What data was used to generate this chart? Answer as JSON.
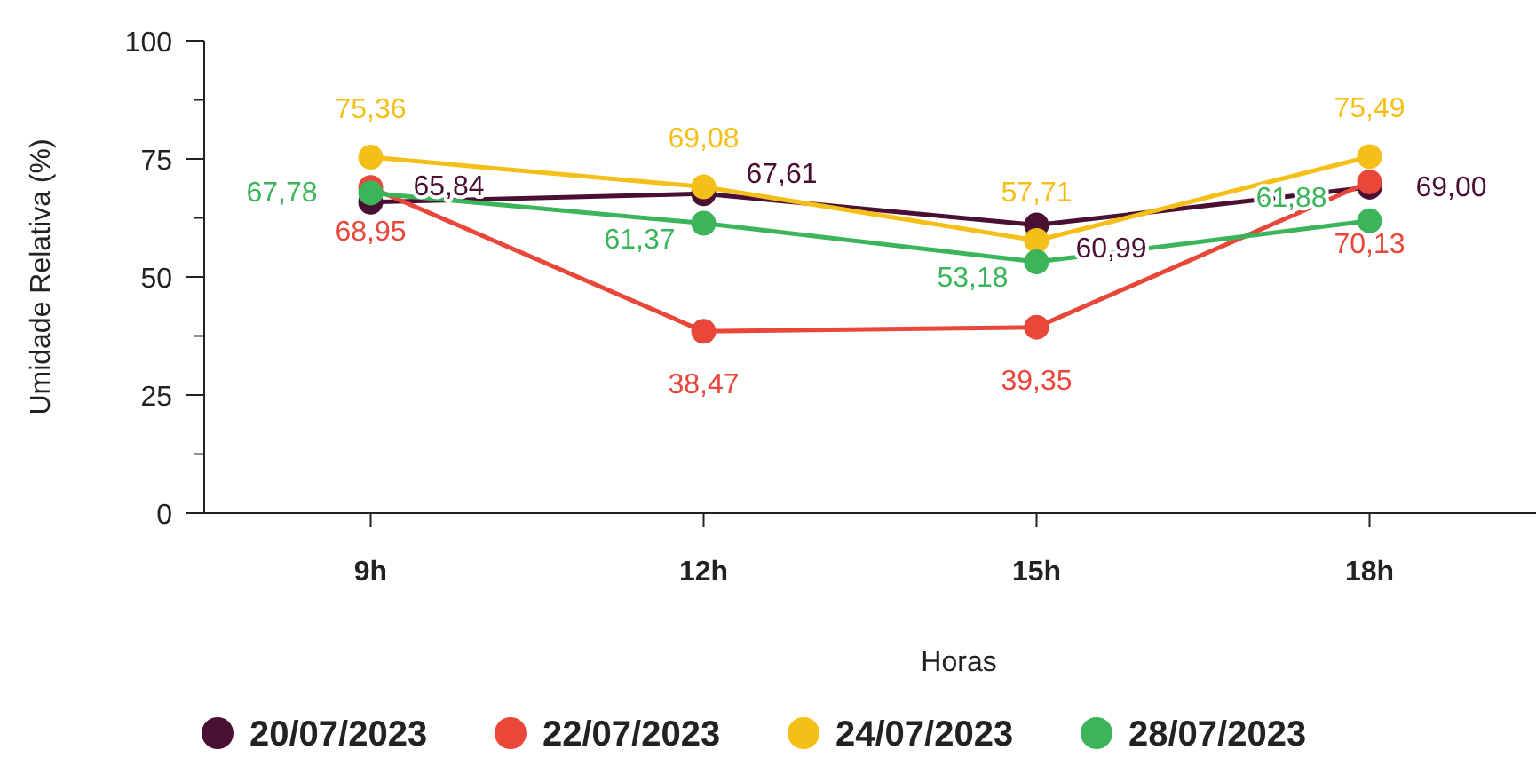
{
  "chart_data": {
    "type": "line",
    "xlabel": "Horas",
    "ylabel": "Umidade Relativa (%)",
    "categories": [
      "9h",
      "12h",
      "15h",
      "18h"
    ],
    "ylim": [
      0,
      100
    ],
    "yticks": [
      0,
      {
        "value": 12.5,
        "label": null
      },
      25,
      {
        "value": 37.5,
        "label": null
      },
      50,
      {
        "value": 62.5,
        "label": null
      },
      75,
      {
        "value": 87.5,
        "label": null
      },
      100
    ],
    "marker": "circle",
    "legend": "bottom",
    "grid": false,
    "series": [
      {
        "name": "20/07/2023",
        "color": "#4a1034",
        "values": [
          65.84,
          67.61,
          60.99,
          69.0
        ],
        "value_labels": [
          "65,84",
          "67,61",
          "60,99",
          "69,00"
        ]
      },
      {
        "name": "22/07/2023",
        "color": "#e8473a",
        "values": [
          68.95,
          38.47,
          39.35,
          70.13
        ],
        "value_labels": [
          "68,95",
          "38,47",
          "39,35",
          "70,13"
        ]
      },
      {
        "name": "24/07/2023",
        "color": "#f5bf1a",
        "values": [
          75.36,
          69.08,
          57.71,
          75.49
        ],
        "value_labels": [
          "75,36",
          "69,08",
          "57,71",
          "75,49"
        ]
      },
      {
        "name": "28/07/2023",
        "color": "#3cb55a",
        "values": [
          67.78,
          61.37,
          53.18,
          61.88
        ],
        "value_labels": [
          "67,78",
          "61,37",
          "53,18",
          "61,88"
        ]
      }
    ]
  }
}
